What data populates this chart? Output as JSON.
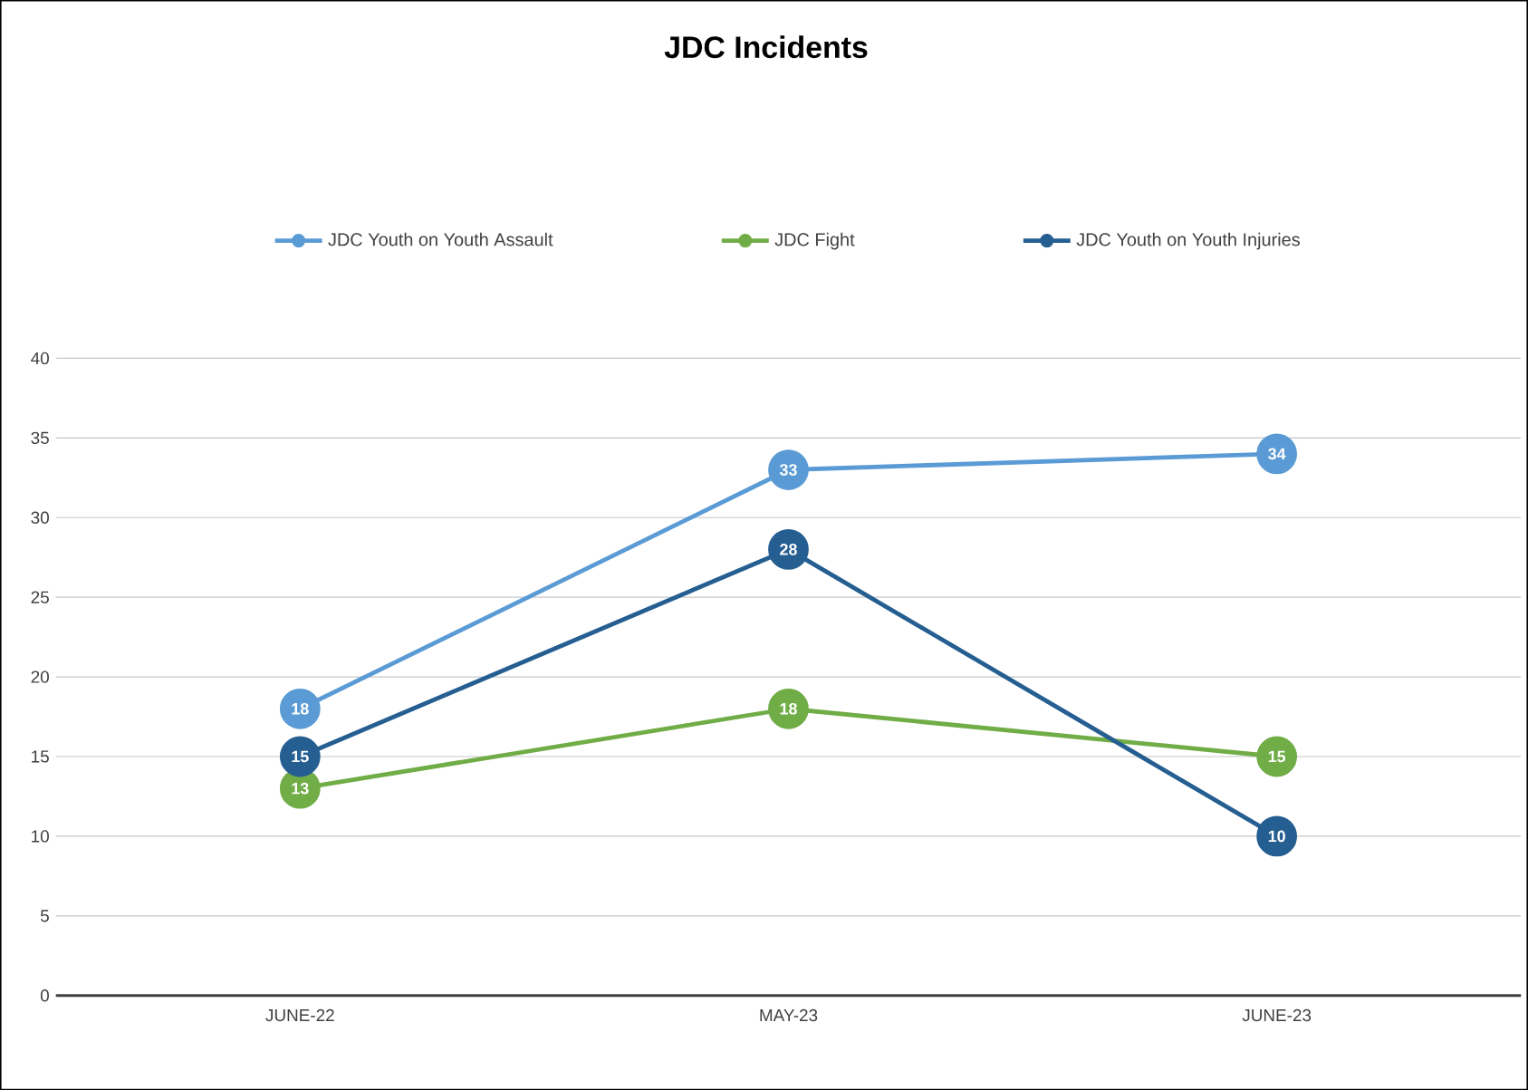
{
  "chart_data": {
    "type": "line",
    "title": "JDC Incidents",
    "categories": [
      "JUNE-22",
      "MAY-23",
      "JUNE-23"
    ],
    "series": [
      {
        "name": "JDC Youth on Youth Assault",
        "color": "#5b9bd5",
        "values": [
          18,
          33,
          34
        ]
      },
      {
        "name": "JDC Fight",
        "color": "#70ad47",
        "values": [
          13,
          18,
          15
        ]
      },
      {
        "name": "JDC Youth on Youth Injuries",
        "color": "#255e91",
        "values": [
          15,
          28,
          10
        ]
      }
    ],
    "ylim": [
      0,
      40
    ],
    "yticks": [
      0,
      5,
      10,
      15,
      20,
      25,
      30,
      35,
      40
    ],
    "grid": "y",
    "legend": "top",
    "marker": "circle",
    "data_labels": true
  }
}
